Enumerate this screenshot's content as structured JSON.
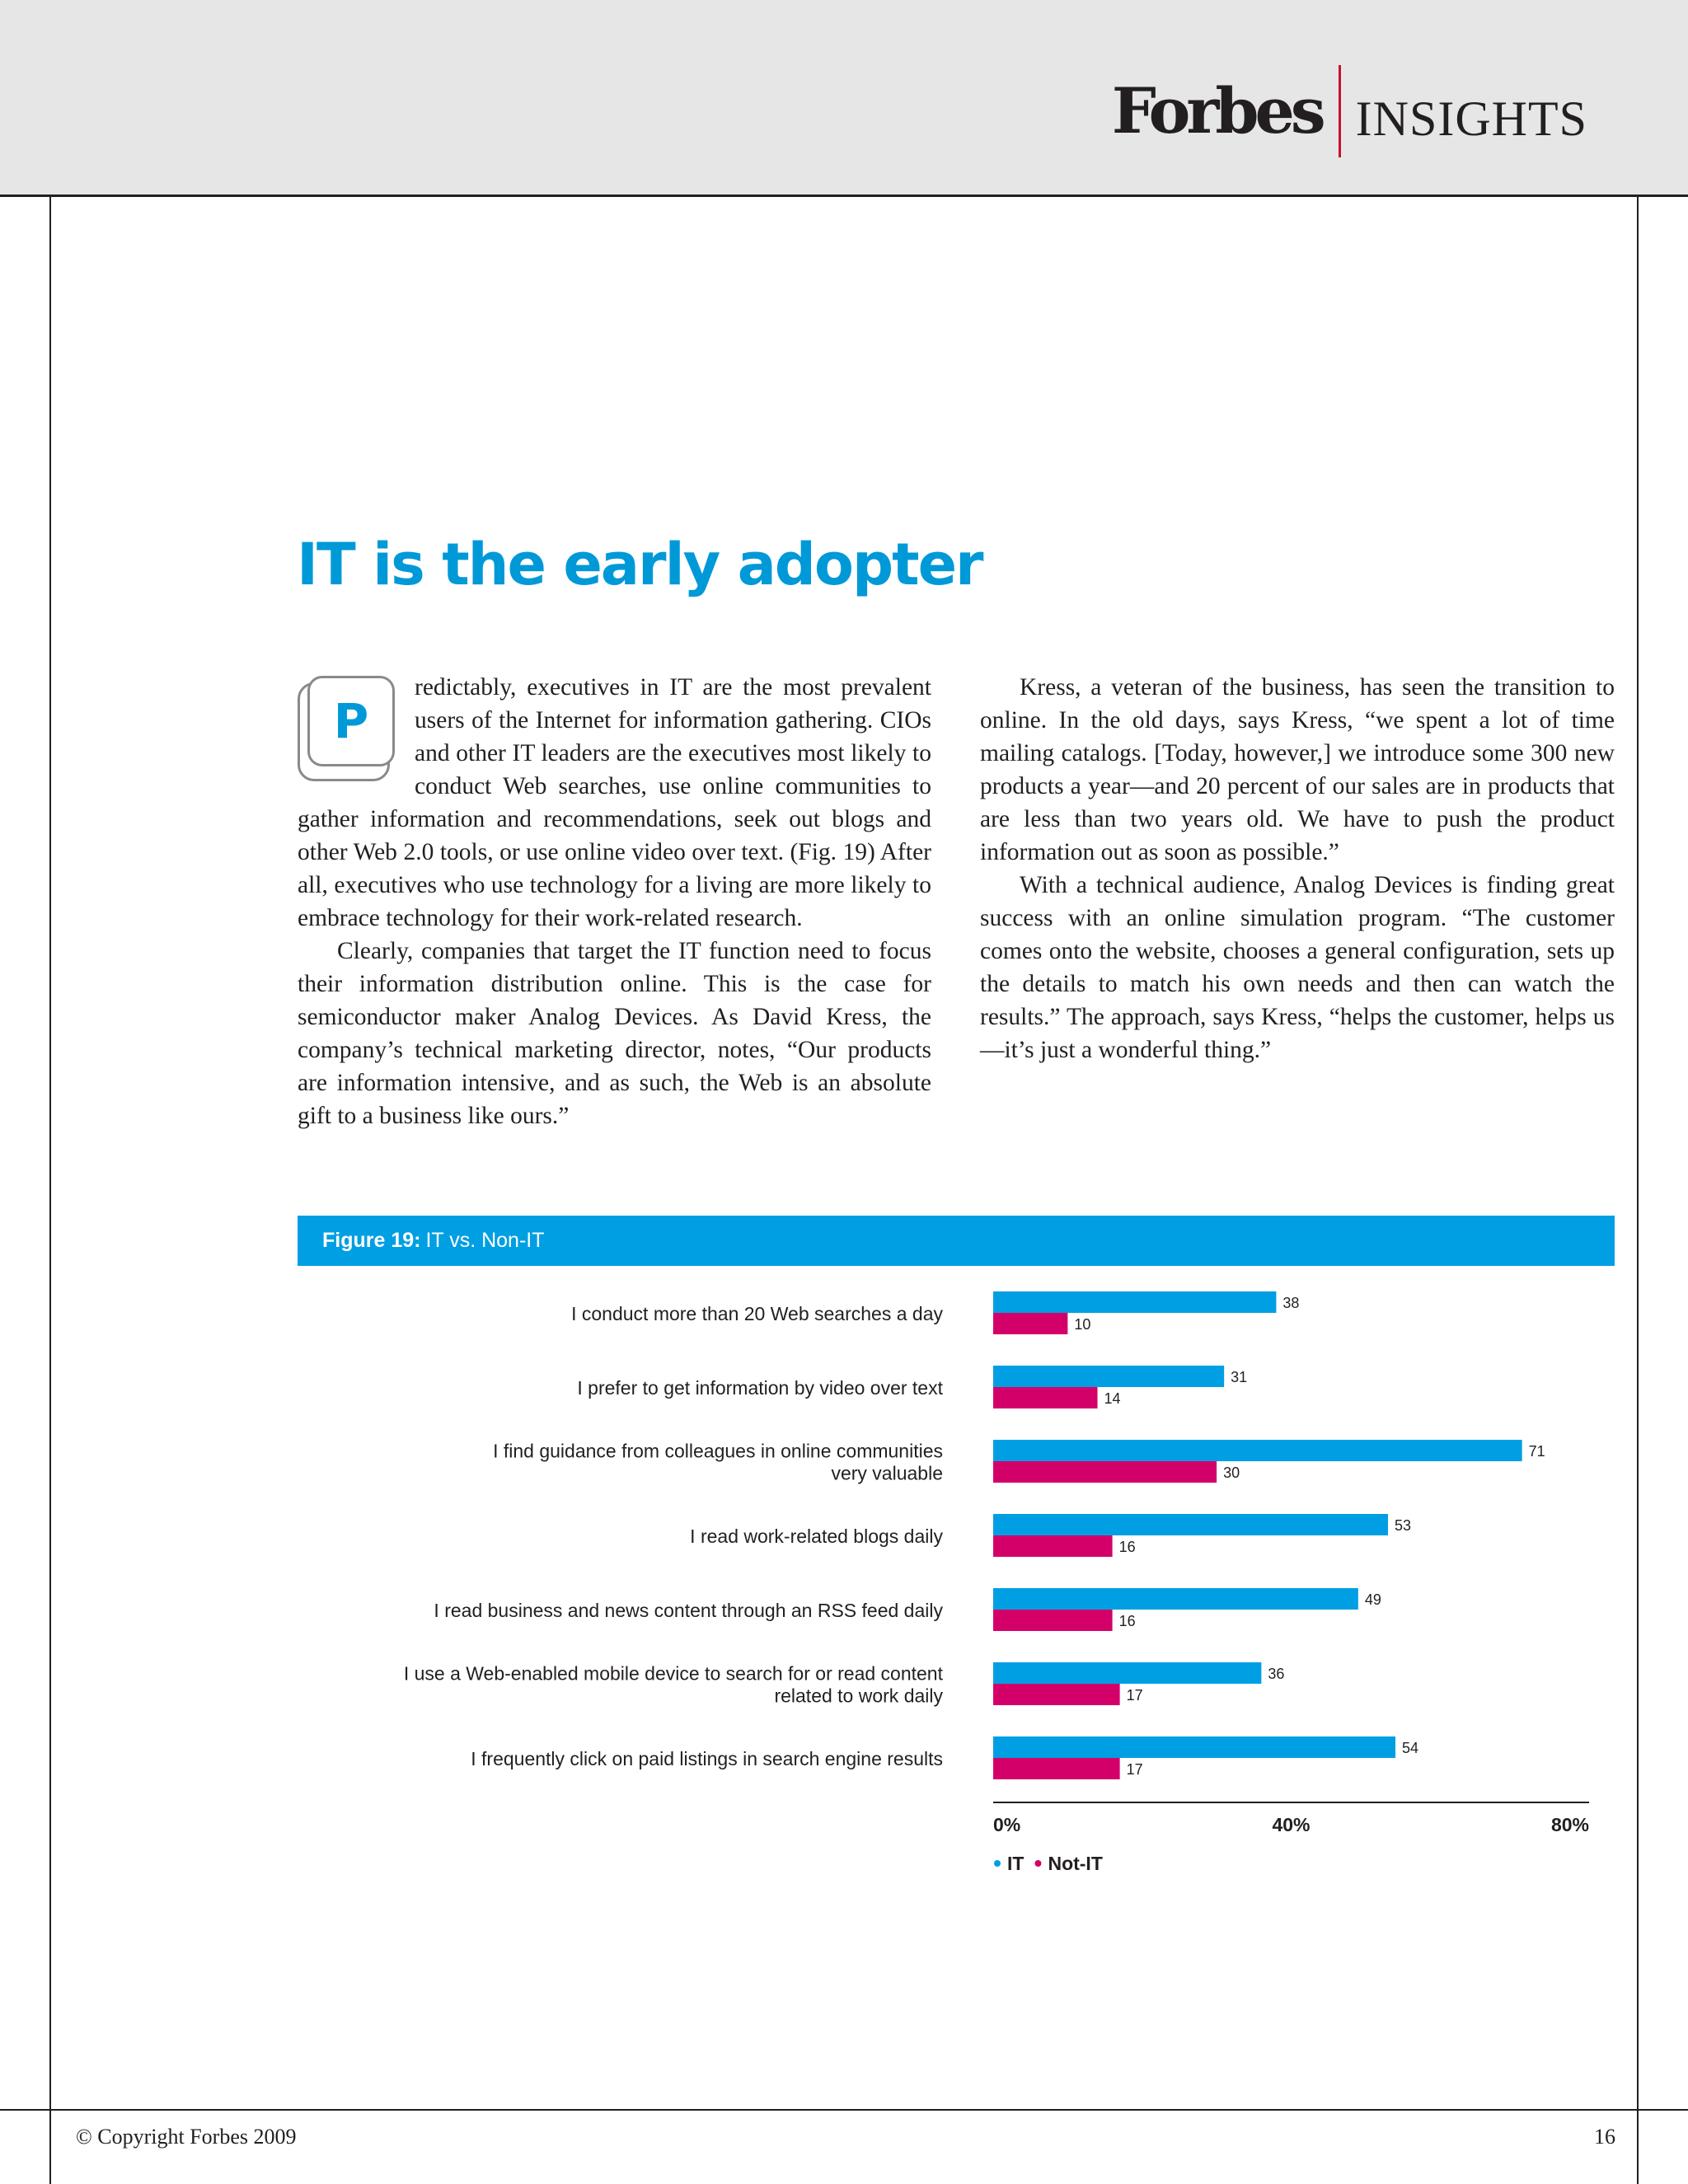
{
  "header": {
    "brand_main": "Forbes",
    "brand_sub": "INSIGHTS"
  },
  "title": "IT is the early adopter",
  "body": {
    "dropcap": "P",
    "left_col": [
      "redictably, executives in IT are the most prev­alent users of the Internet for information gathering. CIOs and other IT leaders are the executives most likely to conduct Web searches, use online communities to gather information and recom­mendations, seek out blogs and other Web 2.0 tools, or use online video over text. (Fig. 19) After all, executives who use technology for a living are more likely to embrace tech­nology for their work-related research.",
      "Clearly, companies that target the IT function need to focus their information distribution online. This is the case for semiconductor maker Analog Devices. As David Kress, the company’s technical marketing director, notes, “Our products are information intensive, and as such, the Web is an absolute gift to a business like ours.”"
    ],
    "right_col": [
      "Kress, a veteran of the business, has seen the transition to online. In the old days, says Kress, “we spent a lot of time mailing catalogs. [Today, however,] we introduce some 300 new products a year—and 20 percent of our sales are in products that are less than two years old. We have to push the product information out as soon as possible.”",
      "With a technical audience, Analog Devices is finding great success with an online simulation program. “The customer comes onto the website, chooses a general config­uration, sets up the details to match his own needs and then can watch the results.” The approach, says Kress, “helps the customer, helps us—it’s just a wonderful thing.”"
    ]
  },
  "figure": {
    "label": "Figure 19:",
    "title": "IT vs. Non-IT"
  },
  "chart_data": {
    "type": "bar",
    "orientation": "horizontal",
    "categories": [
      [
        "I conduct more than 20 Web searches a day"
      ],
      [
        "I prefer to get information by video over text"
      ],
      [
        "I find guidance from colleagues in online communities",
        "very valuable"
      ],
      [
        "I read work-related blogs daily"
      ],
      [
        "I read business and news content through an RSS feed daily"
      ],
      [
        "I use a Web-enabled mobile device to search for or read content",
        "related to work daily"
      ],
      [
        "I frequently click on paid listings in search engine results"
      ]
    ],
    "series": [
      {
        "name": "IT",
        "color": "#009fe3",
        "values": [
          38,
          31,
          71,
          53,
          49,
          36,
          54
        ]
      },
      {
        "name": "Not-IT",
        "color": "#d4006a",
        "values": [
          10,
          14,
          30,
          16,
          16,
          17,
          17
        ]
      }
    ],
    "xlim": [
      0,
      80
    ],
    "ticks": [
      0,
      40,
      80
    ],
    "tick_labels": [
      "0%",
      "40%",
      "80%"
    ],
    "grid": false,
    "legend": "bottom-left"
  },
  "footer": {
    "copyright": "© Copyright Forbes 2009",
    "page_number": "16"
  }
}
